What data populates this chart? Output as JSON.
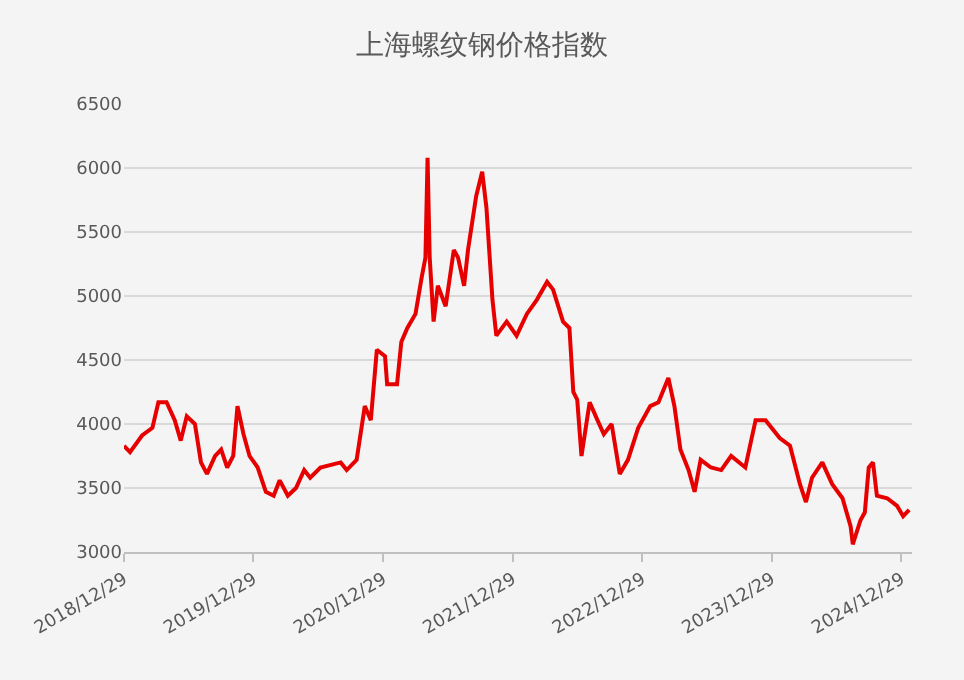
{
  "chart_data": {
    "type": "line",
    "title": "上海螺纹钢价格指数",
    "x": [
      "2018-12-29",
      "2019-01-15",
      "2019-02-18",
      "2019-03-19",
      "2019-04-05",
      "2019-04-28",
      "2019-05-21",
      "2019-06-07",
      "2019-06-24",
      "2019-07-17",
      "2019-08-03",
      "2019-08-20",
      "2019-09-12",
      "2019-09-29",
      "2019-10-16",
      "2019-11-02",
      "2019-11-14",
      "2019-12-01",
      "2019-12-18",
      "2020-01-10",
      "2020-02-02",
      "2020-02-24",
      "2020-03-12",
      "2020-04-04",
      "2020-04-27",
      "2020-05-20",
      "2020-06-06",
      "2020-07-05",
      "2020-08-31",
      "2020-09-17",
      "2020-10-15",
      "2020-11-07",
      "2020-11-24",
      "2020-12-11",
      "2021-01-03",
      "2021-01-09",
      "2021-02-06",
      "2021-02-18",
      "2021-03-07",
      "2021-03-30",
      "2021-04-16",
      "2021-04-27",
      "2021-05-03",
      "2021-05-09",
      "2021-05-20",
      "2021-06-01",
      "2021-06-23",
      "2021-07-16",
      "2021-07-28",
      "2021-08-14",
      "2021-08-25",
      "2021-09-17",
      "2021-10-04",
      "2021-10-16",
      "2021-11-02",
      "2021-11-13",
      "2021-12-12",
      "2022-01-09",
      "2022-02-07",
      "2022-03-07",
      "2022-04-05",
      "2022-04-22",
      "2022-05-20",
      "2022-06-07",
      "2022-06-18",
      "2022-06-29",
      "2022-07-11",
      "2022-08-03",
      "2022-08-25",
      "2022-09-12",
      "2022-10-04",
      "2022-10-27",
      "2022-11-19",
      "2022-12-18",
      "2023-01-21",
      "2023-02-13",
      "2023-03-13",
      "2023-03-30",
      "2023-04-16",
      "2023-05-09",
      "2023-05-26",
      "2023-06-12",
      "2023-07-11",
      "2023-08-09",
      "2023-09-06",
      "2023-10-16",
      "2023-11-14",
      "2023-12-12",
      "2024-01-21",
      "2024-02-19",
      "2024-03-18",
      "2024-04-04",
      "2024-04-21",
      "2024-05-20",
      "2024-06-17",
      "2024-07-16",
      "2024-08-08",
      "2024-08-14",
      "2024-09-05",
      "2024-09-17",
      "2024-09-28",
      "2024-10-10",
      "2024-10-21",
      "2024-11-19",
      "2024-12-17",
      "2025-01-03",
      "2025-01-20"
    ],
    "series": [
      {
        "color": "#e60000",
        "values": [
          3830,
          3780,
          3910,
          3970,
          4170,
          4170,
          4030,
          3870,
          4060,
          4000,
          3700,
          3610,
          3750,
          3800,
          3660,
          3750,
          4140,
          3920,
          3750,
          3660,
          3470,
          3440,
          3560,
          3440,
          3500,
          3640,
          3580,
          3660,
          3700,
          3640,
          3720,
          4140,
          4030,
          4580,
          4530,
          4310,
          4310,
          4640,
          4750,
          4860,
          5140,
          5300,
          6080,
          5300,
          4800,
          5080,
          4920,
          5360,
          5300,
          5080,
          5360,
          5780,
          5970,
          5690,
          4970,
          4690,
          4800,
          4690,
          4860,
          4970,
          5110,
          5050,
          4800,
          4750,
          4250,
          4190,
          3750,
          4170,
          4030,
          3920,
          4000,
          3610,
          3720,
          3970,
          4140,
          4170,
          4360,
          4140,
          3800,
          3640,
          3470,
          3720,
          3660,
          3640,
          3750,
          3660,
          4030,
          4030,
          3890,
          3830,
          3530,
          3390,
          3580,
          3700,
          3530,
          3420,
          3200,
          3060,
          3250,
          3310,
          3660,
          3700,
          3440,
          3420,
          3360,
          3280,
          3330
        ]
      }
    ],
    "xlim": [
      "2018-12-29",
      "2025-01-28"
    ],
    "xticks": [
      {
        "value": "2018-12-29",
        "label": "2018/12/29"
      },
      {
        "value": "2019-12-29",
        "label": "2019/12/29"
      },
      {
        "value": "2020-12-29",
        "label": "2020/12/29"
      },
      {
        "value": "2021-12-29",
        "label": "2021/12/29"
      },
      {
        "value": "2022-12-29",
        "label": "2022/12/29"
      },
      {
        "value": "2023-12-29",
        "label": "2023/12/29"
      },
      {
        "value": "2024-12-29",
        "label": "2024/12/29"
      }
    ],
    "ylim": [
      3000,
      6500
    ],
    "yticks": [
      3000,
      3500,
      4000,
      4500,
      5000,
      5500,
      6000,
      6500
    ],
    "grid": "y",
    "marker": "none",
    "line_style": "solid"
  }
}
